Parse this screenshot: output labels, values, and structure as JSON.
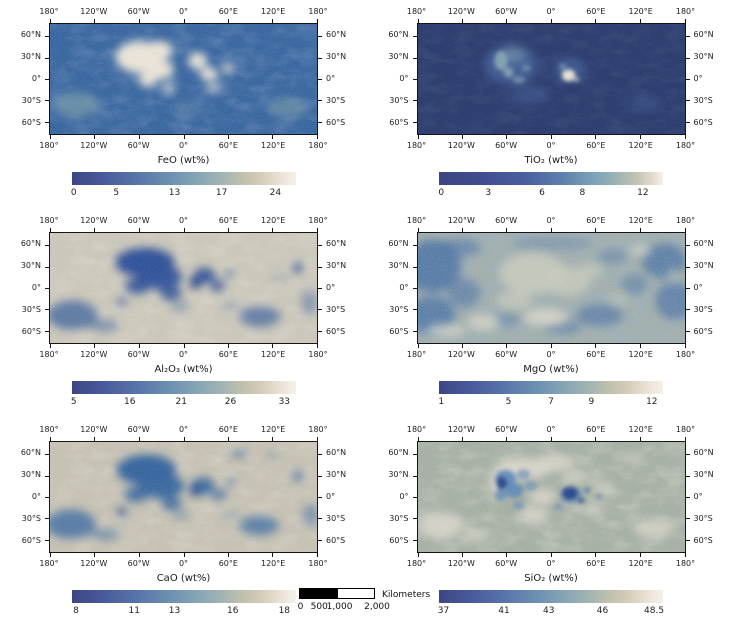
{
  "chart_data": {
    "type": "heatmap",
    "layout": "2x3 grid of global cylindrical-projection lunar element abundance maps, each with a horizontal colorbar below",
    "axis": {
      "lon_ticks": [
        "180°",
        "120°W",
        "60°W",
        "0°",
        "60°E",
        "120°E",
        "180°"
      ],
      "lat_ticks": [
        "60°N",
        "30°N",
        "0°",
        "30°S",
        "60°S"
      ],
      "lon_range": [
        -180,
        180
      ],
      "lat_range": [
        -75,
        75
      ]
    },
    "panels": [
      {
        "id": "feo",
        "title": "FeO (wt%)",
        "cb_ticks": [
          "0",
          "5",
          "13",
          "17",
          "24"
        ],
        "cb_tick_pos": [
          1,
          20,
          46,
          67,
          91
        ],
        "range": [
          0,
          24
        ],
        "pattern": "blue globe with cream high-FeO mare patches in the upper center and teal patches at lower corners"
      },
      {
        "id": "tio2",
        "title": "TiO₂ (wt%)",
        "cb_ticks": [
          "0",
          "3",
          "6",
          "8",
          "12"
        ],
        "cb_tick_pos": [
          1,
          22,
          46,
          64,
          91
        ],
        "range": [
          0,
          12
        ],
        "pattern": "dark navy globe with lighter blue mare regions and a bright white high-Ti spot near 25°E, 0°"
      },
      {
        "id": "al2o3",
        "title": "Al₂O₃ (wt%)",
        "cb_ticks": [
          "5",
          "16",
          "21",
          "26",
          "33"
        ],
        "cb_tick_pos": [
          1,
          26,
          49,
          71,
          95
        ],
        "range": [
          5,
          33
        ],
        "pattern": "pale tan highlands with dark blue low-Al mare region in upper center and blue patches at lower corners"
      },
      {
        "id": "mgo",
        "title": "MgO (wt%)",
        "cb_ticks": [
          "1",
          "5",
          "7",
          "9",
          "12"
        ],
        "cb_tick_pos": [
          1,
          31,
          50,
          68,
          95
        ],
        "range": [
          1,
          12
        ],
        "pattern": "mottled mix of blue farside highlands at the edges and pale sage nearside center"
      },
      {
        "id": "cao",
        "title": "CaO (wt%)",
        "cb_ticks": [
          "8",
          "11",
          "13",
          "16",
          "18"
        ],
        "cb_tick_pos": [
          2,
          28,
          46,
          72,
          95
        ],
        "range": [
          8,
          18
        ],
        "pattern": "tan highlands with steel-blue low-Ca mare region in upper center and blue patches at lower corners"
      },
      {
        "id": "sio2",
        "title": "SiO₂ (wt%)",
        "cb_ticks": [
          "37",
          "41",
          "43",
          "46",
          "48.5"
        ],
        "cb_tick_pos": [
          2,
          29,
          49,
          73,
          96
        ],
        "range": [
          37,
          48.5
        ],
        "pattern": "sage-gray globe with whitish highland patches and blue low-Si blobs near the center, darkest near 25°E"
      }
    ],
    "scalebar": {
      "label": "Kilometers",
      "ticks": [
        "0",
        "500",
        "1,000",
        "2,000"
      ],
      "tick_pos": [
        2,
        26,
        52,
        100
      ]
    },
    "colormap": [
      "#3D4683",
      "#5570A7",
      "#86A5B5",
      "#A2B4B2",
      "#D2C9B4",
      "#F6F1E9"
    ]
  }
}
